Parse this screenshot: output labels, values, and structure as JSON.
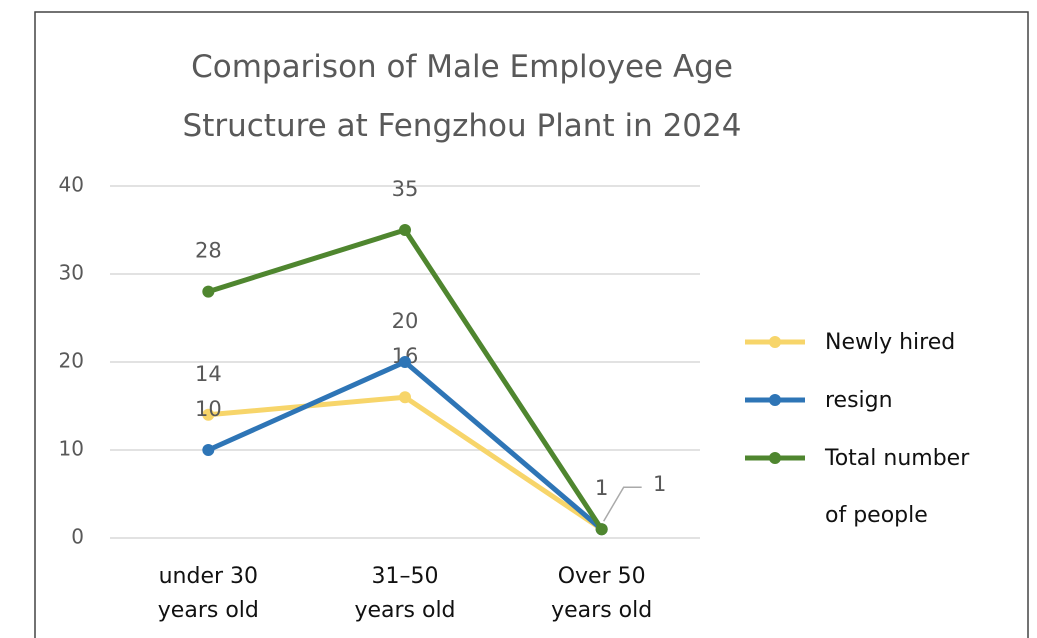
{
  "chart_data": {
    "type": "line",
    "title": "Comparison of Male Employee Age Structure at Fengzhou Plant in 2024",
    "categories": [
      "under 30 years old",
      "31–50 years old",
      "Over 50 years old"
    ],
    "series": [
      {
        "name": "Newly hired",
        "color": "#f7d56a",
        "values": [
          14,
          16,
          1
        ]
      },
      {
        "name": "resign",
        "color": "#2e75b6",
        "values": [
          10,
          20,
          1
        ]
      },
      {
        "name": "Total number of people",
        "color": "#4f862f",
        "values": [
          28,
          35,
          1
        ]
      }
    ],
    "ylim": [
      0,
      40
    ],
    "yticks": [
      0,
      10,
      20,
      30,
      40
    ],
    "grid": true,
    "legend": "right"
  }
}
